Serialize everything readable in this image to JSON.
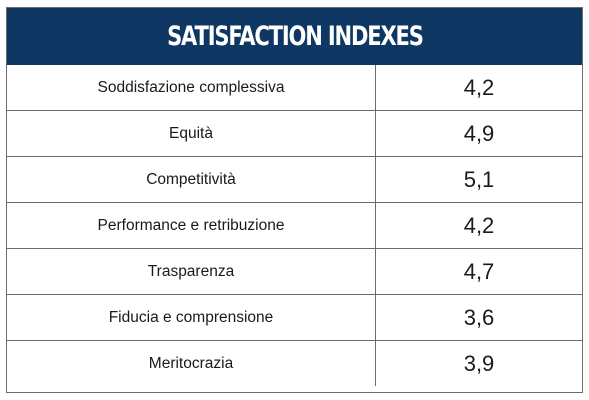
{
  "chart_data": {
    "type": "table",
    "title": "SATISFACTION INDEXES",
    "categories": [
      "Soddisfazione complessiva",
      "Equità",
      "Competitività",
      "Performance e retribuzione",
      "Trasparenza",
      "Fiducia e comprensione",
      "Meritocrazia"
    ],
    "values": [
      4.2,
      4.9,
      5.1,
      4.2,
      4.7,
      3.6,
      3.9
    ],
    "value_labels": [
      "4,2",
      "4,9",
      "5,1",
      "4,2",
      "4,7",
      "3,6",
      "3,9"
    ],
    "header_color": "#0f3763",
    "grid_color": "#6d6d6d"
  }
}
